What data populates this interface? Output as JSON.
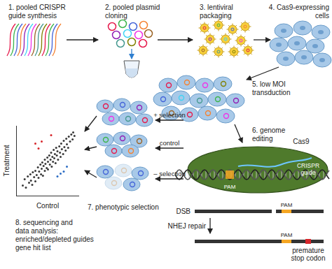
{
  "steps": [
    {
      "lines": [
        "1. pooled CRISPR",
        "guide synthesis"
      ]
    },
    {
      "lines": [
        "2. pooled plasmid",
        "cloning"
      ]
    },
    {
      "lines": [
        "3. lentiviral",
        "packaging"
      ]
    },
    {
      "lines": [
        "4. Cas9-expressing",
        "cells"
      ]
    },
    {
      "lines": [
        "5. low MOI",
        "transduction"
      ]
    },
    {
      "lines": [
        "6. genome",
        "editing"
      ]
    },
    {
      "lines": [
        "7. phenotypic selection"
      ]
    },
    {
      "lines": [
        "8. sequencing and",
        "data analysis:",
        "enriched/depleted guides",
        "gene hit list"
      ]
    }
  ],
  "editing": {
    "protein": "Cas9",
    "guide": [
      "CRISPR",
      "guide"
    ],
    "pam": "PAM",
    "break": "DSB",
    "repair": "NHEJ repair",
    "outcome": [
      "premature",
      "stop codon"
    ]
  },
  "selection": [
    "+ selection",
    "control",
    "– selection"
  ],
  "chart_data": {
    "type": "scatter",
    "x_label": "Control",
    "y_label": "Treatment",
    "xlim": [
      0,
      10
    ],
    "ylim": [
      0,
      10
    ],
    "tick_labels": false,
    "series": [
      {
        "color": "#3a3a3a",
        "points": [
          [
            1,
            1.5
          ],
          [
            1.3,
            2.4
          ],
          [
            1.5,
            1.2
          ],
          [
            1.8,
            2.8
          ],
          [
            2,
            1.9
          ],
          [
            2.2,
            3.1
          ],
          [
            2.3,
            2.2
          ],
          [
            2.5,
            1.6
          ],
          [
            2.6,
            3.4
          ],
          [
            2.8,
            2.7
          ],
          [
            3,
            2.1
          ],
          [
            3,
            3.6
          ],
          [
            3.2,
            3.0
          ],
          [
            3.4,
            4.1
          ],
          [
            3.5,
            2.6
          ],
          [
            3.6,
            3.5
          ],
          [
            3.8,
            4.5
          ],
          [
            3.9,
            3.1
          ],
          [
            4,
            3.9
          ],
          [
            4.1,
            4.8
          ],
          [
            4.2,
            2.9
          ],
          [
            4.3,
            4.3
          ],
          [
            4.5,
            3.6
          ],
          [
            4.5,
            5.2
          ],
          [
            4.6,
            4.6
          ],
          [
            4.8,
            4.0
          ],
          [
            4.9,
            5.5
          ],
          [
            5,
            4.9
          ],
          [
            5,
            3.8
          ],
          [
            5.2,
            5.8
          ],
          [
            5.3,
            4.5
          ],
          [
            5.4,
            5.2
          ],
          [
            5.5,
            6.2
          ],
          [
            5.6,
            4.2
          ],
          [
            5.7,
            5.6
          ],
          [
            5.8,
            4.9
          ],
          [
            5.9,
            6.6
          ],
          [
            6,
            5.4
          ],
          [
            6.1,
            6.0
          ],
          [
            6.2,
            4.7
          ],
          [
            6.3,
            6.9
          ],
          [
            6.4,
            5.8
          ],
          [
            6.5,
            6.4
          ],
          [
            6.6,
            5.2
          ],
          [
            6.8,
            7.1
          ],
          [
            6.9,
            6.2
          ],
          [
            7,
            5.6
          ],
          [
            7.1,
            7.5
          ],
          [
            7.2,
            6.7
          ],
          [
            7.4,
            6.0
          ],
          [
            7.5,
            7.9
          ],
          [
            7.6,
            7.0
          ],
          [
            7.8,
            6.5
          ],
          [
            7.9,
            8.2
          ],
          [
            8,
            7.4
          ],
          [
            8.2,
            6.9
          ],
          [
            8.3,
            8.5
          ],
          [
            8.5,
            7.8
          ],
          [
            8.7,
            8.8
          ],
          [
            8.9,
            8.1
          ],
          [
            9,
            9.1
          ],
          [
            9.2,
            8.6
          ]
        ]
      },
      {
        "color": "#d7262b",
        "points": [
          [
            3,
            7.5
          ],
          [
            4,
            7.8
          ],
          [
            5.5,
            8.7
          ],
          [
            3.5,
            6.8
          ]
        ]
      },
      {
        "color": "#2b6cc4",
        "points": [
          [
            6.5,
            2.8
          ],
          [
            7.5,
            3.5
          ],
          [
            8,
            4.2
          ],
          [
            7,
            3.2
          ]
        ]
      }
    ]
  }
}
